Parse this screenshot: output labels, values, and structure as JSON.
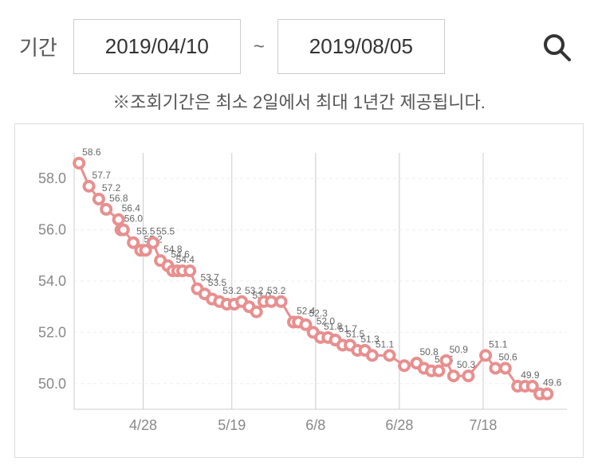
{
  "controls": {
    "period_label": "기간",
    "date_from": "2019/04/10",
    "tilde": "~",
    "date_to": "2019/08/05"
  },
  "note": "※조회기간은 최소 2일에서 최대 1년간 제공됩니다.",
  "chart": {
    "type": "line",
    "background_color": "#ffffff",
    "border_color": "#dddddd",
    "grid_color": "#eeeeee",
    "axis_color": "#cccccc",
    "tick_color": "#888888",
    "tick_fontsize": 18,
    "value_label_color": "#666666",
    "value_label_fontsize": 12,
    "line_color": "#e88f8f",
    "marker_fill": "#ffffff",
    "marker_stroke": "#e88f8f",
    "marker_stroke_width": 4,
    "marker_radius": 6,
    "line_width": 3,
    "ylim": [
      49,
      59
    ],
    "yticks": [
      50.0,
      52.0,
      54.0,
      56.0,
      58.0
    ],
    "xticks": [
      "4/28",
      "5/19",
      "6/8",
      "6/28",
      "7/18"
    ],
    "xtick_positions": [
      0.14,
      0.32,
      0.49,
      0.66,
      0.83
    ],
    "data": [
      {
        "x": 0.01,
        "y": 58.6,
        "label": "58.6"
      },
      {
        "x": 0.03,
        "y": 57.7,
        "label": "57.7"
      },
      {
        "x": 0.05,
        "y": 57.2,
        "label": "57.2"
      },
      {
        "x": 0.065,
        "y": 56.8,
        "label": "56.8"
      },
      {
        "x": 0.09,
        "y": 56.4,
        "label": "56.4"
      },
      {
        "x": 0.095,
        "y": 56.0,
        "label": "56.0"
      },
      {
        "x": 0.1,
        "y": 56.0,
        "label": ""
      },
      {
        "x": 0.12,
        "y": 55.5,
        "label": "55.5"
      },
      {
        "x": 0.135,
        "y": 55.2,
        "label": "55.2"
      },
      {
        "x": 0.145,
        "y": 55.2,
        "label": ""
      },
      {
        "x": 0.16,
        "y": 55.5,
        "label": "55.5"
      },
      {
        "x": 0.175,
        "y": 54.8,
        "label": "54.8"
      },
      {
        "x": 0.19,
        "y": 54.6,
        "label": "54.6"
      },
      {
        "x": 0.2,
        "y": 54.4,
        "label": "54.4"
      },
      {
        "x": 0.21,
        "y": 54.4,
        "label": ""
      },
      {
        "x": 0.22,
        "y": 54.4,
        "label": ""
      },
      {
        "x": 0.235,
        "y": 54.4,
        "label": ""
      },
      {
        "x": 0.25,
        "y": 53.7,
        "label": "53.7"
      },
      {
        "x": 0.265,
        "y": 53.5,
        "label": "53.5"
      },
      {
        "x": 0.28,
        "y": 53.3,
        "label": ""
      },
      {
        "x": 0.295,
        "y": 53.2,
        "label": "53.2"
      },
      {
        "x": 0.31,
        "y": 53.1,
        "label": ""
      },
      {
        "x": 0.325,
        "y": 53.1,
        "label": ""
      },
      {
        "x": 0.34,
        "y": 53.2,
        "label": "53.2"
      },
      {
        "x": 0.355,
        "y": 53.0,
        "label": "53.0"
      },
      {
        "x": 0.37,
        "y": 52.8,
        "label": ""
      },
      {
        "x": 0.385,
        "y": 53.2,
        "label": "53.2"
      },
      {
        "x": 0.4,
        "y": 53.2,
        "label": ""
      },
      {
        "x": 0.42,
        "y": 53.2,
        "label": ""
      },
      {
        "x": 0.445,
        "y": 52.4,
        "label": "52.4"
      },
      {
        "x": 0.455,
        "y": 52.4,
        "label": ""
      },
      {
        "x": 0.47,
        "y": 52.3,
        "label": "52.3"
      },
      {
        "x": 0.485,
        "y": 52.0,
        "label": "52.0"
      },
      {
        "x": 0.5,
        "y": 51.8,
        "label": "51.8"
      },
      {
        "x": 0.515,
        "y": 51.8,
        "label": ""
      },
      {
        "x": 0.53,
        "y": 51.7,
        "label": "51.7"
      },
      {
        "x": 0.545,
        "y": 51.5,
        "label": "51.5"
      },
      {
        "x": 0.56,
        "y": 51.5,
        "label": ""
      },
      {
        "x": 0.575,
        "y": 51.3,
        "label": "51.3"
      },
      {
        "x": 0.59,
        "y": 51.3,
        "label": ""
      },
      {
        "x": 0.605,
        "y": 51.1,
        "label": "51.1"
      },
      {
        "x": 0.64,
        "y": 51.1,
        "label": ""
      },
      {
        "x": 0.67,
        "y": 50.7,
        "label": ""
      },
      {
        "x": 0.695,
        "y": 50.8,
        "label": "50.8"
      },
      {
        "x": 0.71,
        "y": 50.6,
        "label": ""
      },
      {
        "x": 0.725,
        "y": 50.5,
        "label": "50.5"
      },
      {
        "x": 0.74,
        "y": 50.5,
        "label": ""
      },
      {
        "x": 0.755,
        "y": 50.9,
        "label": "50.9"
      },
      {
        "x": 0.77,
        "y": 50.3,
        "label": "50.3"
      },
      {
        "x": 0.8,
        "y": 50.3,
        "label": ""
      },
      {
        "x": 0.835,
        "y": 51.1,
        "label": "51.1"
      },
      {
        "x": 0.855,
        "y": 50.6,
        "label": "50.6"
      },
      {
        "x": 0.875,
        "y": 50.6,
        "label": ""
      },
      {
        "x": 0.9,
        "y": 49.9,
        "label": "49.9"
      },
      {
        "x": 0.915,
        "y": 49.9,
        "label": ""
      },
      {
        "x": 0.93,
        "y": 49.9,
        "label": ""
      },
      {
        "x": 0.945,
        "y": 49.6,
        "label": "49.6"
      },
      {
        "x": 0.96,
        "y": 49.6,
        "label": ""
      }
    ]
  }
}
